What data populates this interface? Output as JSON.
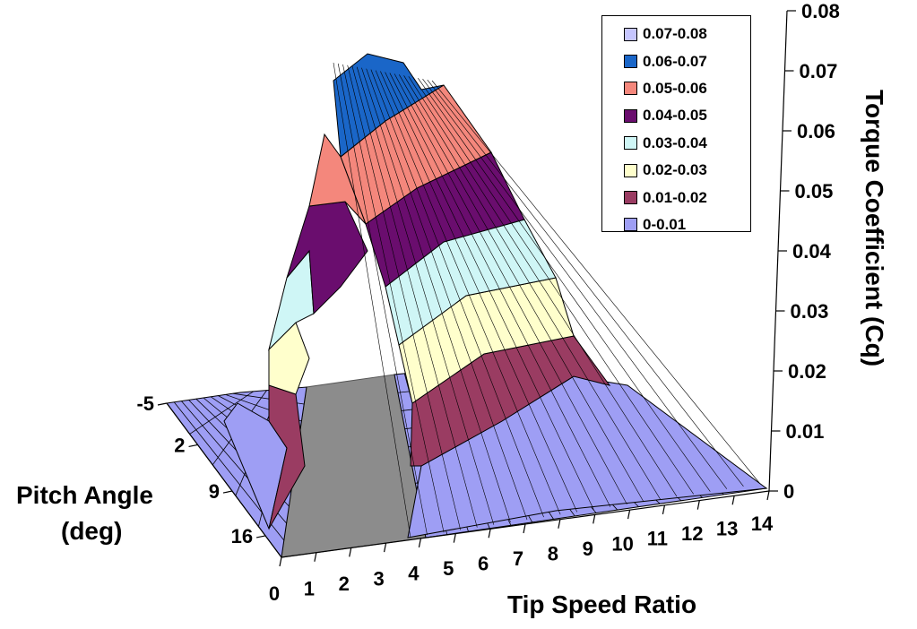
{
  "chart_data": {
    "type": "surface",
    "z_label": "Torque Coefficient (Cq)",
    "x_label": "Tip Speed Ratio",
    "y_label_line1": "Pitch Angle",
    "y_label_line2": "(deg)",
    "x_ticks": [
      "0",
      "1",
      "2",
      "3",
      "4",
      "5",
      "6",
      "7",
      "8",
      "9",
      "10",
      "11",
      "12",
      "13",
      "14"
    ],
    "y_ticks": [
      "-5",
      "2",
      "9",
      "16"
    ],
    "z_ticks": [
      "0",
      "0.01",
      "0.02",
      "0.03",
      "0.04",
      "0.05",
      "0.06",
      "0.07",
      "0.08"
    ],
    "z_range": [
      0,
      0.08
    ],
    "x_range": [
      0,
      14
    ],
    "peak": {
      "tip_speed_ratio": 2.5,
      "pitch_angle": 0,
      "cq": 0.072
    },
    "legend": [
      {
        "label": "0.07-0.08",
        "color": "#c6c6ff"
      },
      {
        "label": "0.06-0.07",
        "color": "#1a66c8"
      },
      {
        "label": "0.05-0.06",
        "color": "#f4877c"
      },
      {
        "label": "0.04-0.05",
        "color": "#6a0d6e"
      },
      {
        "label": "0.03-0.04",
        "color": "#cff6f6"
      },
      {
        "label": "0.02-0.03",
        "color": "#ffffcc"
      },
      {
        "label": "0.01-0.02",
        "color": "#9a3c62"
      },
      {
        "label": "0-0.01",
        "color": "#9e9ef4"
      }
    ]
  }
}
